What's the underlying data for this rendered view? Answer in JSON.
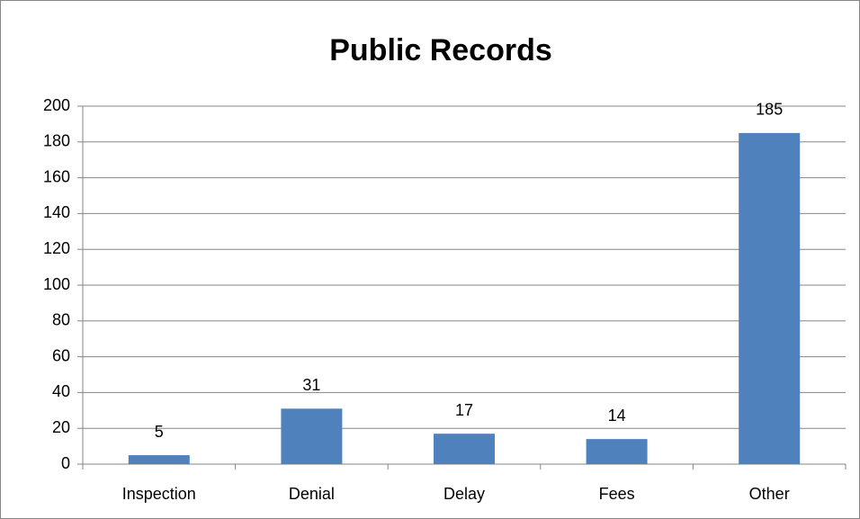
{
  "chart_data": {
    "type": "bar",
    "title": "Public Records",
    "categories": [
      "Inspection",
      "Denial",
      "Delay",
      "Fees",
      "Other"
    ],
    "values": [
      5,
      31,
      17,
      14,
      185
    ],
    "color": "#4f81bd",
    "ylim": [
      0,
      200
    ],
    "yticks": [
      0,
      20,
      40,
      60,
      80,
      100,
      120,
      140,
      160,
      180,
      200
    ],
    "grid": true
  }
}
